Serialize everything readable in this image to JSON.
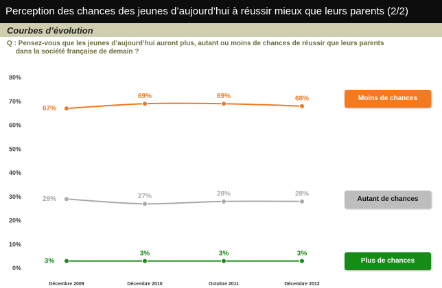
{
  "header": {
    "title": "Perception des chances des jeunes d’aujourd’hui à réussir mieux que leurs parents (2/2)",
    "subtitle": "Courbes d’évolution",
    "question_line1": "Q : Pensez-vous que les jeunes d’aujourd’hui auront plus, autant ou moins de chances de réussir que leurs parents",
    "question_line2": "dans la société française de demain ?"
  },
  "chart_data": {
    "type": "line",
    "categories": [
      "Décembre 2009",
      "Décembre 2010",
      "Octobre 2011",
      "Décembre 2012"
    ],
    "ylim": [
      0,
      80
    ],
    "yticks": [
      "0%",
      "10%",
      "20%",
      "30%",
      "40%",
      "50%",
      "60%",
      "70%",
      "80%"
    ],
    "grid": false,
    "series": [
      {
        "name": "Moins de chances",
        "values": [
          67,
          69,
          69,
          68
        ],
        "labels": [
          "67%",
          "69%",
          "69%",
          "68%"
        ],
        "color": "#f07820"
      },
      {
        "name": "Autant de chances",
        "values": [
          29,
          27,
          28,
          28
        ],
        "labels": [
          "29%",
          "27%",
          "28%",
          "28%"
        ],
        "color": "#a8a8a8"
      },
      {
        "name": "Plus de chances",
        "values": [
          3,
          3,
          3,
          3
        ],
        "labels": [
          "3%",
          "3%",
          "3%",
          "3%"
        ],
        "color": "#1a8a1a"
      }
    ]
  },
  "legend": [
    {
      "label": "Moins de chances",
      "color": "#f47a20"
    },
    {
      "label": "Autant de chances",
      "color": "#bdbdbd"
    },
    {
      "label": "Plus de chances",
      "color": "#168c16"
    }
  ]
}
